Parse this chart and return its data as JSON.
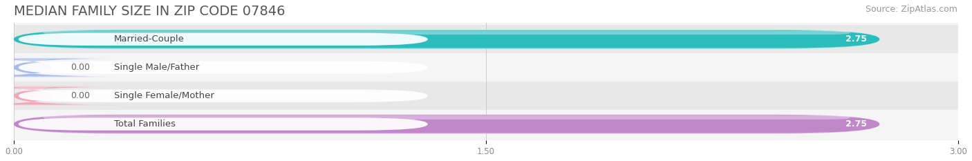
{
  "title": "MEDIAN FAMILY SIZE IN ZIP CODE 07846",
  "source": "Source: ZipAtlas.com",
  "categories": [
    "Married-Couple",
    "Single Male/Father",
    "Single Female/Mother",
    "Total Families"
  ],
  "values": [
    2.75,
    0.0,
    0.0,
    2.75
  ],
  "bar_colors": [
    "#2bbcbc",
    "#a8bce8",
    "#f0a8b8",
    "#c088c8"
  ],
  "bar_light_colors": [
    "#88e0e0",
    "#d0ddf5",
    "#f8ccd8",
    "#ddb0e0"
  ],
  "bar_dark_colors": [
    "#1a9090",
    "#7898d0",
    "#d87898",
    "#9860a8"
  ],
  "label_bg_color": "#ffffff",
  "xlim": [
    0,
    3.0
  ],
  "xticks": [
    0.0,
    1.5,
    3.0
  ],
  "xtick_labels": [
    "0.00",
    "1.50",
    "3.00"
  ],
  "bar_height": 0.62,
  "background_color": "#ffffff",
  "plot_bg_color": "#f5f5f5",
  "row_bg_colors": [
    "#e8e8e8",
    "#f5f5f5"
  ],
  "title_fontsize": 14,
  "source_fontsize": 9,
  "label_fontsize": 9.5,
  "value_fontsize": 9,
  "tick_fontsize": 8.5
}
